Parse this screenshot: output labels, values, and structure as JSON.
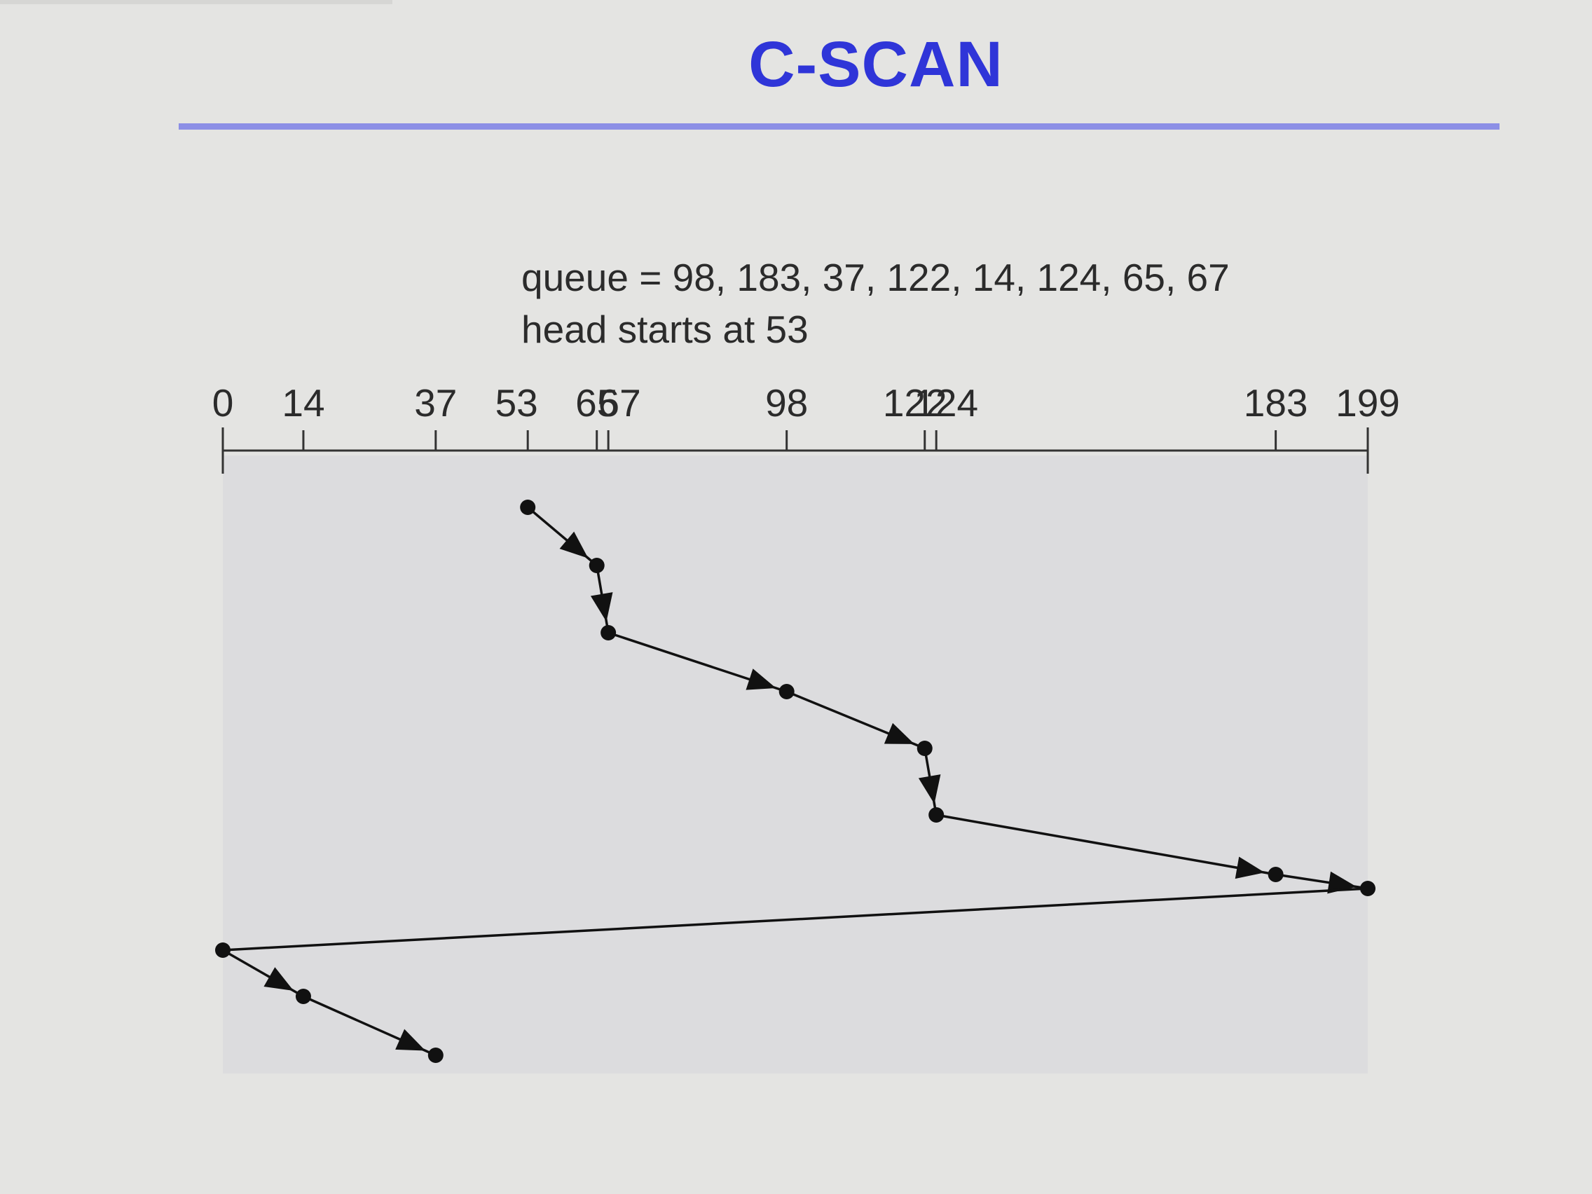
{
  "title": "C-SCAN",
  "queue_text": "queue = 98, 183, 37, 122, 14, 124, 65, 67",
  "head_text": "head starts at 53",
  "axis": {
    "min": 0,
    "max": 199,
    "ticks": [
      {
        "value": 0,
        "label": "0"
      },
      {
        "value": 14,
        "label": "14"
      },
      {
        "value": 37,
        "label": "37"
      },
      {
        "value": 53,
        "label": "53"
      },
      {
        "value": 65,
        "label": "65"
      },
      {
        "value": 67,
        "label": "67"
      },
      {
        "value": 98,
        "label": "98"
      },
      {
        "value": 122,
        "label": "122"
      },
      {
        "value": 124,
        "label": "124"
      },
      {
        "value": 183,
        "label": "183"
      },
      {
        "value": 199,
        "label": "199"
      }
    ]
  },
  "head_path": [
    53,
    65,
    67,
    98,
    122,
    124,
    183,
    199,
    0,
    14,
    37
  ],
  "colors": {
    "title": "#2f35d8",
    "rule": "#8c8fe6",
    "plot_background": "#dcdcde",
    "ink": "#111111"
  }
}
